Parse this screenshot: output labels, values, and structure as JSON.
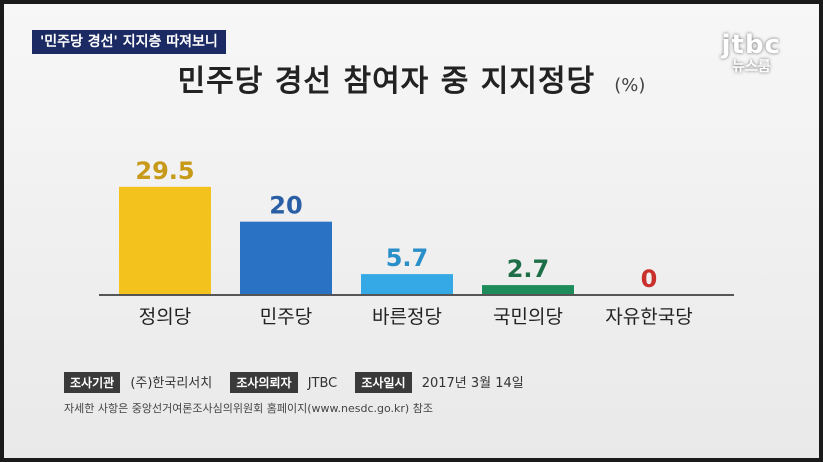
{
  "header": {
    "tag": "'민주당 경선' 지지층 따져보니",
    "title": "민주당 경선 참여자 중 지지정당",
    "unit": "(%)"
  },
  "logo": {
    "main": "jtbc",
    "sub": "뉴스룸"
  },
  "chart_data": {
    "type": "bar",
    "title": "민주당 경선 참여자 중 지지정당",
    "unit": "(%)",
    "categories": [
      "정의당",
      "민주당",
      "바른정당",
      "국민의당",
      "자유한국당"
    ],
    "values": [
      29.5,
      20,
      5.7,
      2.7,
      0
    ],
    "value_labels": [
      "29.5",
      "20",
      "5.7",
      "2.7",
      "0"
    ],
    "colors": [
      "#f3c21c",
      "#2a73c4",
      "#35a9e6",
      "#1e8c5a",
      "#c9302c"
    ],
    "label_colors": [
      "#c79a1a",
      "#2a5fa6",
      "#2a8fc9",
      "#1e6e48",
      "#c9302c"
    ],
    "ylim": [
      0,
      30
    ],
    "grid": false,
    "legend": "none"
  },
  "footer": {
    "org_label": "조사기관",
    "org_value": "(주)한국리서치",
    "client_label": "조사의뢰자",
    "client_value": "JTBC",
    "date_label": "조사일시",
    "date_value": "2017년 3월 14일",
    "note": "자세한 사항은 중앙선거여론조사심의위원회 홈페이지(www.nesdc.go.kr) 참조"
  }
}
